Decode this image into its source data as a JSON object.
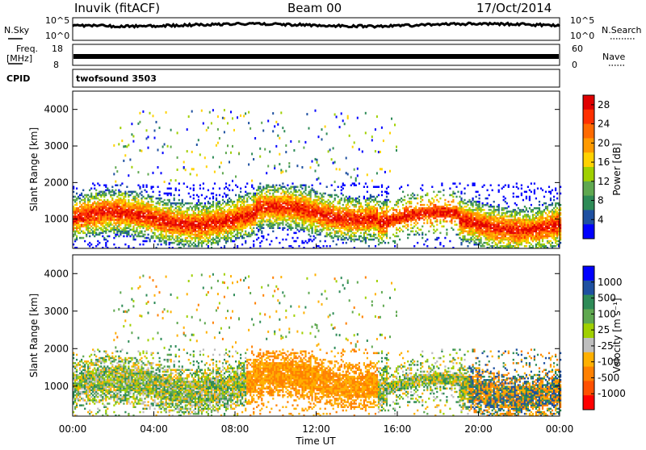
{
  "header": {
    "station": "Inuvik (fitACF)",
    "beam": "Beam 00",
    "date": "17/Oct/2014"
  },
  "strip": {
    "nsky_label": "N.Sky",
    "nsearch_label": "N.Search",
    "freq_label_1": "Freq.",
    "freq_label_2": "[MHz]",
    "nave_label": "Nave",
    "cpid_label": "CPID",
    "cpid_value": "twofsound 3503",
    "noise_left_ticks": [
      "10^5",
      "10^0"
    ],
    "noise_right_ticks": [
      "10^5",
      "10^0"
    ],
    "freq_left_ticks": [
      "18",
      "8"
    ],
    "nave_right_ticks": [
      "60",
      "0"
    ]
  },
  "colors": {
    "power_scale": [
      "#0000ff",
      "#1e50a0",
      "#2e8b57",
      "#5fa850",
      "#a0d000",
      "#ffd200",
      "#ff9a00",
      "#ff6a00",
      "#ff3000",
      "#e00000"
    ],
    "velocity_scale": [
      "#0000ff",
      "#1e50a0",
      "#2e8b57",
      "#5fa850",
      "#a0d000",
      "#bebebe",
      "#ffb000",
      "#ff8000",
      "#ff5000",
      "#ff0000"
    ]
  },
  "chart_data": [
    {
      "type": "heatmap",
      "title": "",
      "xlabel": "Time UT",
      "ylabel": "Slant Range [km]",
      "x_ticks": [
        "00:00",
        "04:00",
        "08:00",
        "12:00",
        "16:00",
        "20:00",
        "00:00"
      ],
      "y_ticks": [
        "1000",
        "2000",
        "3000",
        "4000"
      ],
      "ylim": [
        200,
        4500
      ],
      "colorbar_label": "Power [dB]",
      "colorbar_ticks": [
        "4",
        "8",
        "12",
        "16",
        "20",
        "24",
        "28"
      ],
      "colorbar_range": [
        0,
        30
      ]
    },
    {
      "type": "heatmap",
      "title": "",
      "xlabel": "Time UT",
      "ylabel": "Slant Range [km]",
      "x_ticks": [
        "00:00",
        "04:00",
        "08:00",
        "12:00",
        "16:00",
        "20:00",
        "00:00"
      ],
      "y_ticks": [
        "1000",
        "2000",
        "3000",
        "4000"
      ],
      "ylim": [
        200,
        4500
      ],
      "colorbar_label": "Velocity [m s⁻¹]",
      "colorbar_ticks": [
        "1000",
        "500",
        "100",
        "25",
        "-25",
        "-100",
        "-500",
        "-1000"
      ],
      "colorbar_range": [
        -1000,
        1000
      ]
    }
  ]
}
